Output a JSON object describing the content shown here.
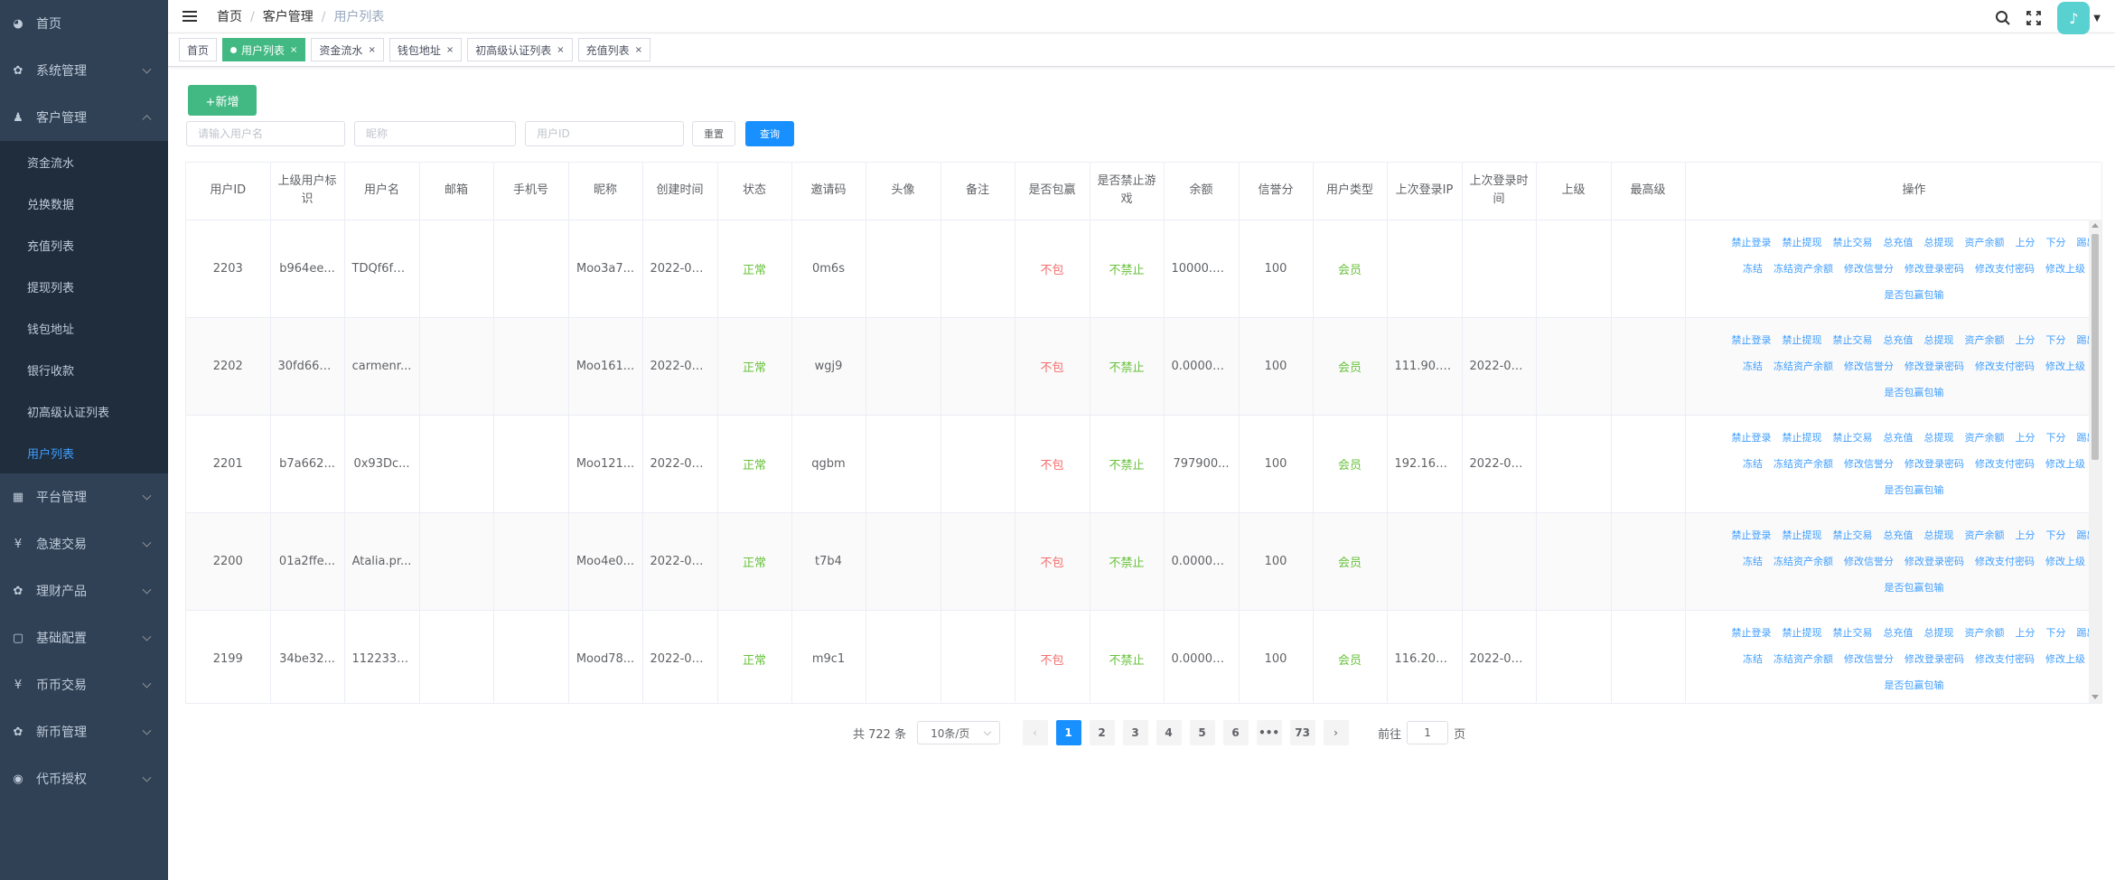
{
  "sidebar": {
    "items": [
      {
        "label": "首页",
        "icon": "dashboard-icon",
        "glyph": "◕"
      },
      {
        "label": "系统管理",
        "icon": "gear-icon",
        "glyph": "✿"
      },
      {
        "label": "客户管理",
        "icon": "user-icon",
        "glyph": "♟"
      }
    ],
    "submenu": [
      "资金流水",
      "兑换数据",
      "充值列表",
      "提现列表",
      "钱包地址",
      "银行收款",
      "初高级认证列表",
      "用户列表"
    ],
    "items_after": [
      {
        "label": "平台管理",
        "icon": "grid-icon",
        "glyph": "▦"
      },
      {
        "label": "急速交易",
        "icon": "yen-icon",
        "glyph": "¥"
      },
      {
        "label": "理财产品",
        "icon": "settings-icon",
        "glyph": "✿"
      },
      {
        "label": "基础配置",
        "icon": "book-icon",
        "glyph": "▢"
      },
      {
        "label": "币币交易",
        "icon": "yen-icon",
        "glyph": "¥"
      },
      {
        "label": "新币管理",
        "icon": "settings-icon",
        "glyph": "✿"
      },
      {
        "label": "代币授权",
        "icon": "lock-icon",
        "glyph": "◉"
      }
    ]
  },
  "breadcrumb": {
    "home": "首页",
    "parent": "客户管理",
    "current": "用户列表"
  },
  "tags": [
    {
      "label": "首页",
      "active": false,
      "closable": false
    },
    {
      "label": "用户列表",
      "active": true,
      "closable": true
    },
    {
      "label": "资金流水",
      "active": false,
      "closable": true
    },
    {
      "label": "钱包地址",
      "active": false,
      "closable": true
    },
    {
      "label": "初高级认证列表",
      "active": false,
      "closable": true
    },
    {
      "label": "充值列表",
      "active": false,
      "closable": true
    }
  ],
  "toolbar": {
    "add_label": "+新增",
    "reset_label": "重置",
    "search_label": "查询"
  },
  "filters": {
    "username_placeholder": "请输入用户名",
    "nickname_placeholder": "昵称",
    "userid_placeholder": "用户ID"
  },
  "table": {
    "columns": [
      "用户ID",
      "上级用户标识",
      "用户名",
      "邮箱",
      "手机号",
      "昵称",
      "创建时间",
      "状态",
      "邀请码",
      "头像",
      "备注",
      "是否包赢",
      "是否禁止游戏",
      "余额",
      "信誉分",
      "用户类型",
      "上次登录IP",
      "上次登录时间",
      "上级",
      "最高级",
      "操作"
    ],
    "ops": [
      "禁止登录",
      "禁止提现",
      "禁止交易",
      "总充值",
      "总提现",
      "资产余额",
      "上分",
      "下分",
      "踢出",
      "冻结",
      "冻结资产余额",
      "修改信誉分",
      "修改登录密码",
      "修改支付密码",
      "修改上级",
      "是否包赢包输"
    ],
    "rows": [
      {
        "id": "2203",
        "parent": "b964ee...",
        "username": "TDQf6f2...",
        "email": "",
        "phone": "",
        "nickname": "Moo3a7...",
        "created": "2022-07...",
        "status": "正常",
        "invite": "0m6s",
        "avatar": "",
        "remark": "",
        "win": "不包",
        "ban_game": "不禁止",
        "balance": "10000.0...",
        "credit": "100",
        "type": "会员",
        "last_ip": "",
        "last_time": "",
        "superior": "",
        "top": ""
      },
      {
        "id": "2202",
        "parent": "30fd660...",
        "username": "carmenr...",
        "email": "",
        "phone": "",
        "nickname": "Moo161...",
        "created": "2022-07...",
        "status": "正常",
        "invite": "wgj9",
        "avatar": "",
        "remark": "",
        "win": "不包",
        "ban_game": "不禁止",
        "balance": "0.00000...",
        "credit": "100",
        "type": "会员",
        "last_ip": "111.90.1...",
        "last_time": "2022-07...",
        "superior": "",
        "top": ""
      },
      {
        "id": "2201",
        "parent": "b7a662...",
        "username": "0x93Dc...",
        "email": "",
        "phone": "",
        "nickname": "Moo121...",
        "created": "2022-07...",
        "status": "正常",
        "invite": "qgbm",
        "avatar": "",
        "remark": "",
        "win": "不包",
        "ban_game": "不禁止",
        "balance": "797900...",
        "credit": "100",
        "type": "会员",
        "last_ip": "192.169...",
        "last_time": "2022-07...",
        "superior": "",
        "top": ""
      },
      {
        "id": "2200",
        "parent": "01a2ffe...",
        "username": "Atalia.pr...",
        "email": "",
        "phone": "",
        "nickname": "Moo4e0...",
        "created": "2022-07...",
        "status": "正常",
        "invite": "t7b4",
        "avatar": "",
        "remark": "",
        "win": "不包",
        "ban_game": "不禁止",
        "balance": "0.00000...",
        "credit": "100",
        "type": "会员",
        "last_ip": "",
        "last_time": "",
        "superior": "",
        "top": ""
      },
      {
        "id": "2199",
        "parent": "34be32...",
        "username": "11223344",
        "email": "",
        "phone": "",
        "nickname": "Mood78...",
        "created": "2022-07...",
        "status": "正常",
        "invite": "m9c1",
        "avatar": "",
        "remark": "",
        "win": "不包",
        "ban_game": "不禁止",
        "balance": "0.00000...",
        "credit": "100",
        "type": "会员",
        "last_ip": "116.204...",
        "last_time": "2022-07...",
        "superior": "",
        "top": ""
      }
    ]
  },
  "pagination": {
    "total": "共 722 条",
    "page_size": "10条/页",
    "pages": [
      "1",
      "2",
      "3",
      "4",
      "5",
      "6",
      "•••",
      "73"
    ],
    "current": "1",
    "goto_prefix": "前往",
    "goto_value": "1",
    "goto_suffix": "页"
  },
  "colors": {
    "sidebar_bg": "#304156",
    "submenu_bg": "#1f2d3d",
    "active_link": "#409eff",
    "success": "#67c23a",
    "danger": "#f56c6c",
    "primary": "#1890ff",
    "tag_active": "#42b983"
  }
}
